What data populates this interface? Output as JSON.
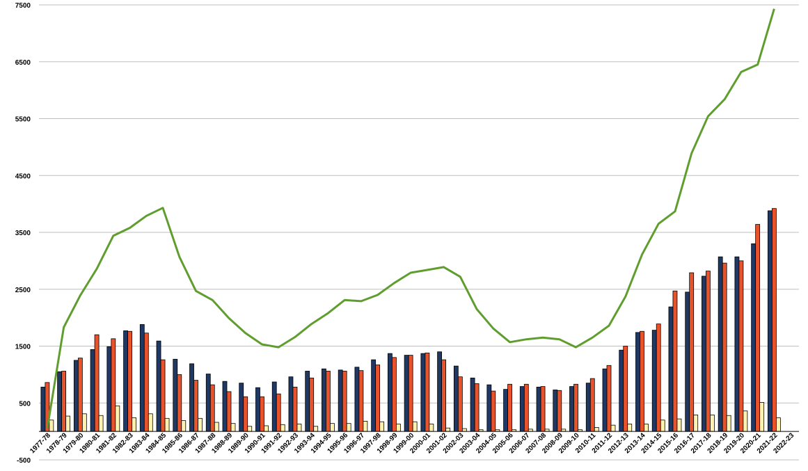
{
  "chart_data": {
    "type": "bar",
    "title": "",
    "xlabel": "",
    "ylabel": "",
    "ylim": [
      -500,
      7500
    ],
    "yticks": [
      -500,
      500,
      1500,
      2500,
      3500,
      4500,
      5500,
      6500,
      7500
    ],
    "ytick_labels": [
      "-500",
      "500",
      "1500",
      "2500",
      "3500",
      "4500",
      "5500",
      "6500",
      "7500"
    ],
    "grid": true,
    "legend": "none",
    "categories": [
      "1977-78",
      "1978-79",
      "1979-80",
      "1980-81",
      "1981-82",
      "1982-83",
      "1983-84",
      "1984-85",
      "1985-86",
      "1986-87",
      "1987-88",
      "1988-89",
      "1989-90",
      "1990-91",
      "1991-92",
      "1992-93",
      "1993-94",
      "1994-95",
      "1995-96",
      "1996-97",
      "1997-98",
      "1998-99",
      "1999-00",
      "2000-01",
      "2001-02",
      "2002-03",
      "2003-04",
      "2004-05",
      "2005-06",
      "2006-07",
      "2007-08",
      "2008-09",
      "2009-10",
      "2010-11",
      "2011-12",
      "2012-13",
      "2013-14",
      "2014-15",
      "2015-16",
      "2016-17",
      "2017-18",
      "2018-19",
      "2019-20",
      "2020-21",
      "2021-22",
      "2022-23"
    ],
    "series": [
      {
        "type": "bar",
        "color": "#1f3864",
        "values": [
          780,
          1050,
          1250,
          1440,
          1490,
          1770,
          1880,
          1590,
          1270,
          1190,
          1010,
          880,
          850,
          770,
          870,
          960,
          1060,
          1100,
          1080,
          1130,
          1260,
          1370,
          1340,
          1370,
          1400,
          1150,
          940,
          820,
          740,
          790,
          780,
          730,
          790,
          850,
          1100,
          1430,
          1740,
          1780,
          2190,
          2450,
          2730,
          3070,
          3070,
          3300,
          3880,
          null
        ]
      },
      {
        "type": "bar",
        "color": "#e8532b",
        "values": [
          860,
          1060,
          1290,
          1700,
          1630,
          1760,
          1730,
          1260,
          1000,
          900,
          820,
          700,
          610,
          610,
          660,
          780,
          940,
          1060,
          1060,
          1070,
          1170,
          1300,
          1340,
          1380,
          1260,
          960,
          840,
          710,
          830,
          830,
          790,
          720,
          830,
          930,
          1160,
          1500,
          1760,
          1890,
          2470,
          2790,
          2820,
          2960,
          3000,
          3640,
          3920,
          null
        ]
      },
      {
        "type": "bar",
        "color": "#fff2b0",
        "values": [
          200,
          270,
          310,
          280,
          450,
          240,
          310,
          230,
          190,
          230,
          160,
          140,
          90,
          100,
          120,
          130,
          90,
          140,
          140,
          180,
          170,
          130,
          170,
          130,
          60,
          50,
          30,
          30,
          30,
          40,
          40,
          40,
          30,
          70,
          110,
          130,
          130,
          200,
          220,
          290,
          290,
          280,
          360,
          510,
          240,
          null
        ]
      },
      {
        "type": "line",
        "color": "#5f9e2e",
        "values": [
          50,
          1830,
          2390,
          2860,
          3440,
          3580,
          3790,
          3930,
          3070,
          2470,
          2310,
          1990,
          1730,
          1530,
          1480,
          1660,
          1890,
          2080,
          2310,
          2290,
          2400,
          2610,
          2790,
          2840,
          2890,
          2720,
          2150,
          1810,
          1570,
          1620,
          1650,
          1620,
          1480,
          1650,
          1860,
          2370,
          3110,
          3650,
          3870,
          4890,
          5540,
          5840,
          6320,
          6450,
          7430,
          null
        ]
      }
    ]
  }
}
